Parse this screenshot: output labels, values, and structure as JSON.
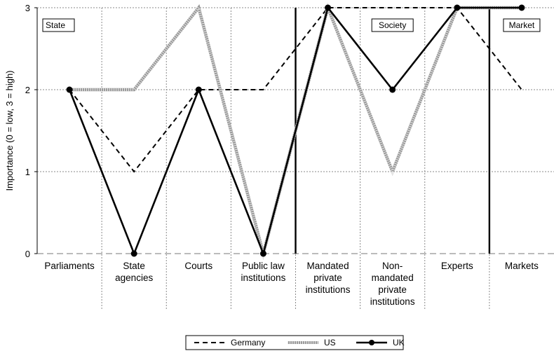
{
  "chart_data": {
    "type": "line",
    "ylabel": "Importance (0 = low, 3 = high)",
    "ylim": [
      0,
      3
    ],
    "yticks": [
      "0",
      "1",
      "2",
      "3"
    ],
    "categories": [
      [
        "Parliaments"
      ],
      [
        "State",
        "agencies"
      ],
      [
        "Courts"
      ],
      [
        "Public law",
        "institutions"
      ],
      [
        "Mandated",
        "private",
        "institutions"
      ],
      [
        "Non-",
        "mandated",
        "private",
        "institutions"
      ],
      [
        "Experts"
      ],
      [
        "Markets"
      ]
    ],
    "regions": [
      {
        "label": "State",
        "start": 0,
        "end": 3
      },
      {
        "label": "Society",
        "start": 4,
        "end": 6
      },
      {
        "label": "Market",
        "start": 7,
        "end": 7
      }
    ],
    "series": [
      {
        "name": "Germany",
        "style": "dashed",
        "color": "#000000",
        "values": [
          2,
          1,
          2,
          2,
          3,
          3,
          3,
          2
        ]
      },
      {
        "name": "US",
        "style": "hatched",
        "color": "#9a9a9a",
        "values": [
          2,
          2,
          3,
          0,
          3,
          1,
          3,
          3
        ]
      },
      {
        "name": "UK",
        "style": "solid-marker",
        "color": "#000000",
        "values": [
          2,
          0,
          2,
          0,
          3,
          2,
          3,
          3
        ]
      }
    ],
    "grid": true,
    "legend_position": "bottom-center"
  }
}
